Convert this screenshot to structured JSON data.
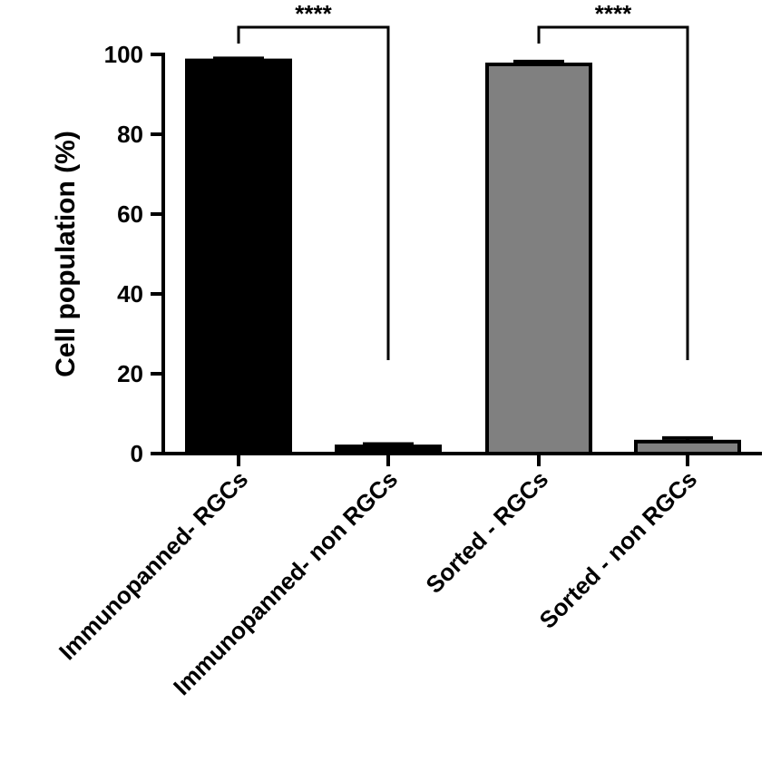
{
  "chart_data": {
    "type": "bar",
    "title": "",
    "xlabel": "",
    "ylabel": "Cell population (%)",
    "ylim": [
      0,
      100
    ],
    "yticks": [
      0,
      20,
      40,
      60,
      80,
      100
    ],
    "grid": false,
    "categories": [
      "Immunopanned- RGCs",
      "Immunopanned- non RGCs",
      "Sorted - RGCs",
      "Sorted - non RGCs"
    ],
    "values": [
      98.5,
      1.8,
      97.5,
      3.0
    ],
    "errors": [
      0.5,
      0.6,
      0.7,
      0.9
    ],
    "bar_colors": [
      "#000000",
      "#000000",
      "#808080",
      "#808080"
    ],
    "significance": [
      {
        "from": 0,
        "to": 1,
        "label": "****"
      },
      {
        "from": 2,
        "to": 3,
        "label": "****"
      }
    ]
  }
}
